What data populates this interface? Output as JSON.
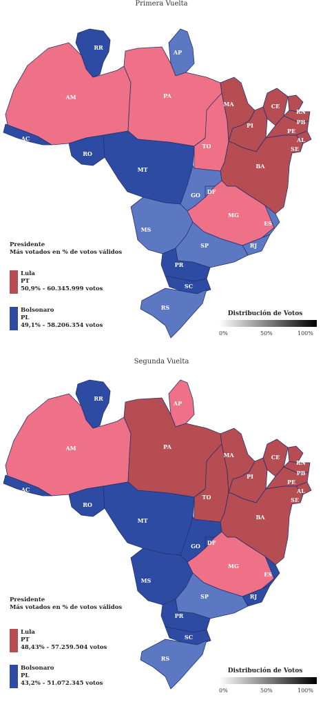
{
  "colors": {
    "lula_dark": "#b54d53",
    "lula_light": "#ee7187",
    "bolso_dark": "#2d4ba3",
    "bolso_light": "#5c78c3"
  },
  "panels": [
    {
      "title": "Primera Vuelta",
      "legend": {
        "title": "Presidente",
        "subtitle": "Más votados en % de votos válidos",
        "entries": [
          {
            "candidate": "Lula",
            "party": "PT",
            "votes": "50,9% - 60.345.999 votos",
            "color": "#b54d53"
          },
          {
            "candidate": "Bolsonaro",
            "party": "PL",
            "votes": "49,1% - 58.206.354 votos",
            "color": "#2d4ba3"
          }
        ]
      },
      "scale": {
        "title": "Distribución de Votos",
        "ticks": [
          "0%",
          "50%",
          "100%"
        ]
      },
      "states": {
        "RR": "#2d4ba3",
        "AP": "#5c78c3",
        "AM": "#ee7187",
        "PA": "#ee7187",
        "AC": "#2d4ba3",
        "RO": "#2d4ba3",
        "MT": "#2d4ba3",
        "TO": "#ee7187",
        "MA": "#b54d53",
        "PI": "#b54d53",
        "CE": "#b54d53",
        "RN": "#b54d53",
        "PB": "#b54d53",
        "PE": "#b54d53",
        "AL": "#b54d53",
        "SE": "#b54d53",
        "BA": "#b54d53",
        "GO": "#5c78c3",
        "DF": "#5c78c3",
        "MG": "#ee7187",
        "MS": "#5c78c3",
        "ES": "#5c78c3",
        "RJ": "#5c78c3",
        "SP": "#5c78c3",
        "PR": "#2d4ba3",
        "SC": "#2d4ba3",
        "RS": "#5c78c3"
      }
    },
    {
      "title": "Segunda Vuelta",
      "legend": {
        "title": "Presidente",
        "subtitle": "Más votados en % de votos válidos",
        "entries": [
          {
            "candidate": "Lula",
            "party": "PT",
            "votes": "48,43% - 57.259.504 votos",
            "color": "#b54d53"
          },
          {
            "candidate": "Bolsonaro",
            "party": "PL",
            "votes": "43,2% - 51.072.345 votos",
            "color": "#2d4ba3"
          }
        ]
      },
      "scale": {
        "title": "Distribución de Votos",
        "ticks": [
          "0%",
          "50%",
          "100%"
        ]
      },
      "states": {
        "RR": "#2d4ba3",
        "AP": "#ee7187",
        "AM": "#ee7187",
        "PA": "#b54d53",
        "AC": "#2d4ba3",
        "RO": "#2d4ba3",
        "MT": "#2d4ba3",
        "TO": "#b54d53",
        "MA": "#b54d53",
        "PI": "#b54d53",
        "CE": "#b54d53",
        "RN": "#b54d53",
        "PB": "#b54d53",
        "PE": "#b54d53",
        "AL": "#b54d53",
        "SE": "#b54d53",
        "BA": "#b54d53",
        "GO": "#2d4ba3",
        "DF": "#2d4ba3",
        "MG": "#ee7187",
        "MS": "#2d4ba3",
        "ES": "#2d4ba3",
        "RJ": "#2d4ba3",
        "SP": "#5c78c3",
        "PR": "#2d4ba3",
        "SC": "#2d4ba3",
        "RS": "#5c78c3"
      }
    }
  ]
}
